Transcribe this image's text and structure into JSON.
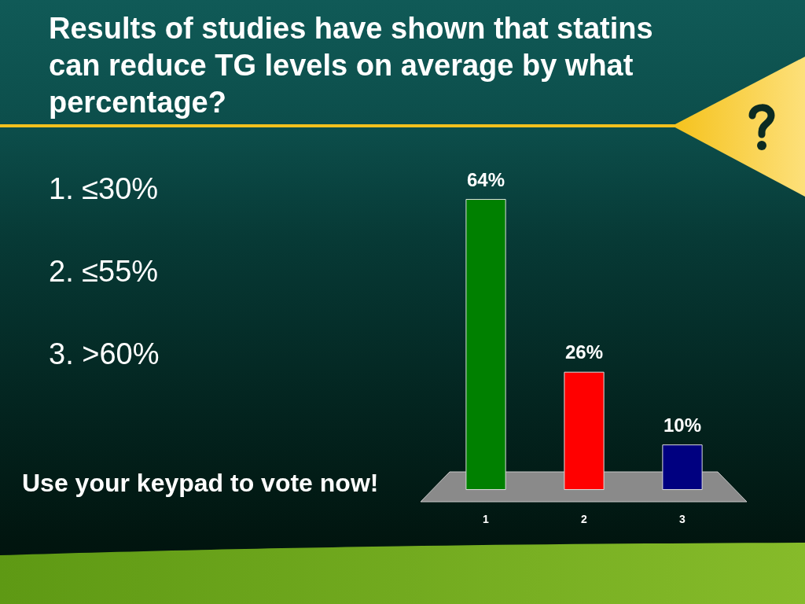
{
  "chart_data": {
    "type": "bar",
    "title": "Results of studies have shown that statins can reduce TG levels on average by what percentage?",
    "categories": [
      "1",
      "2",
      "3"
    ],
    "values": [
      64,
      26,
      10
    ],
    "colors": [
      "#008000",
      "#ff0000",
      "#000080"
    ],
    "value_labels": [
      "64%",
      "26%",
      "10%"
    ],
    "annotations": [
      "1. ≤30%",
      "2. ≤55%",
      "3. >60%",
      "Use your keypad to vote now!"
    ]
  }
}
